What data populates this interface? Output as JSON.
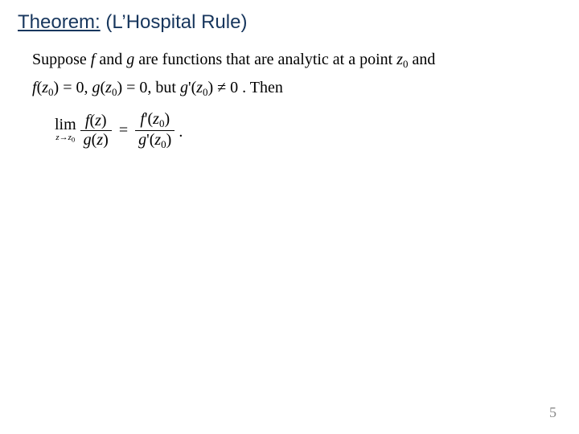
{
  "colors": {
    "title": "#17365d",
    "body": "#000000",
    "pagenum": "#8a8a8a",
    "background": "#ffffff"
  },
  "fonts": {
    "title_family": "Arial",
    "title_size_pt": 24,
    "body_family": "Times New Roman",
    "body_size_pt": 20,
    "pagenum_size_pt": 18
  },
  "title": {
    "underlined": "Theorem:",
    "rest": " (L’Hospital Rule)"
  },
  "body": {
    "suppose_a": "Suppose ",
    "f": "f",
    "and1": " and ",
    "g": "g",
    "rest1": " are functions that are analytic at a point ",
    "z": "z",
    "sub0": "0",
    "and2": " and",
    "fz0_eq": ") = 0,  ",
    "gz0_eq": ") = 0,  but  ",
    "gpr_neq": ") ≠ 0 . Then",
    "lparen": "(",
    "rparen": ")",
    "prime": "'",
    "lim": "lim",
    "arrow": "z→z",
    "eq": "=",
    "period": "."
  },
  "page_number": "5"
}
